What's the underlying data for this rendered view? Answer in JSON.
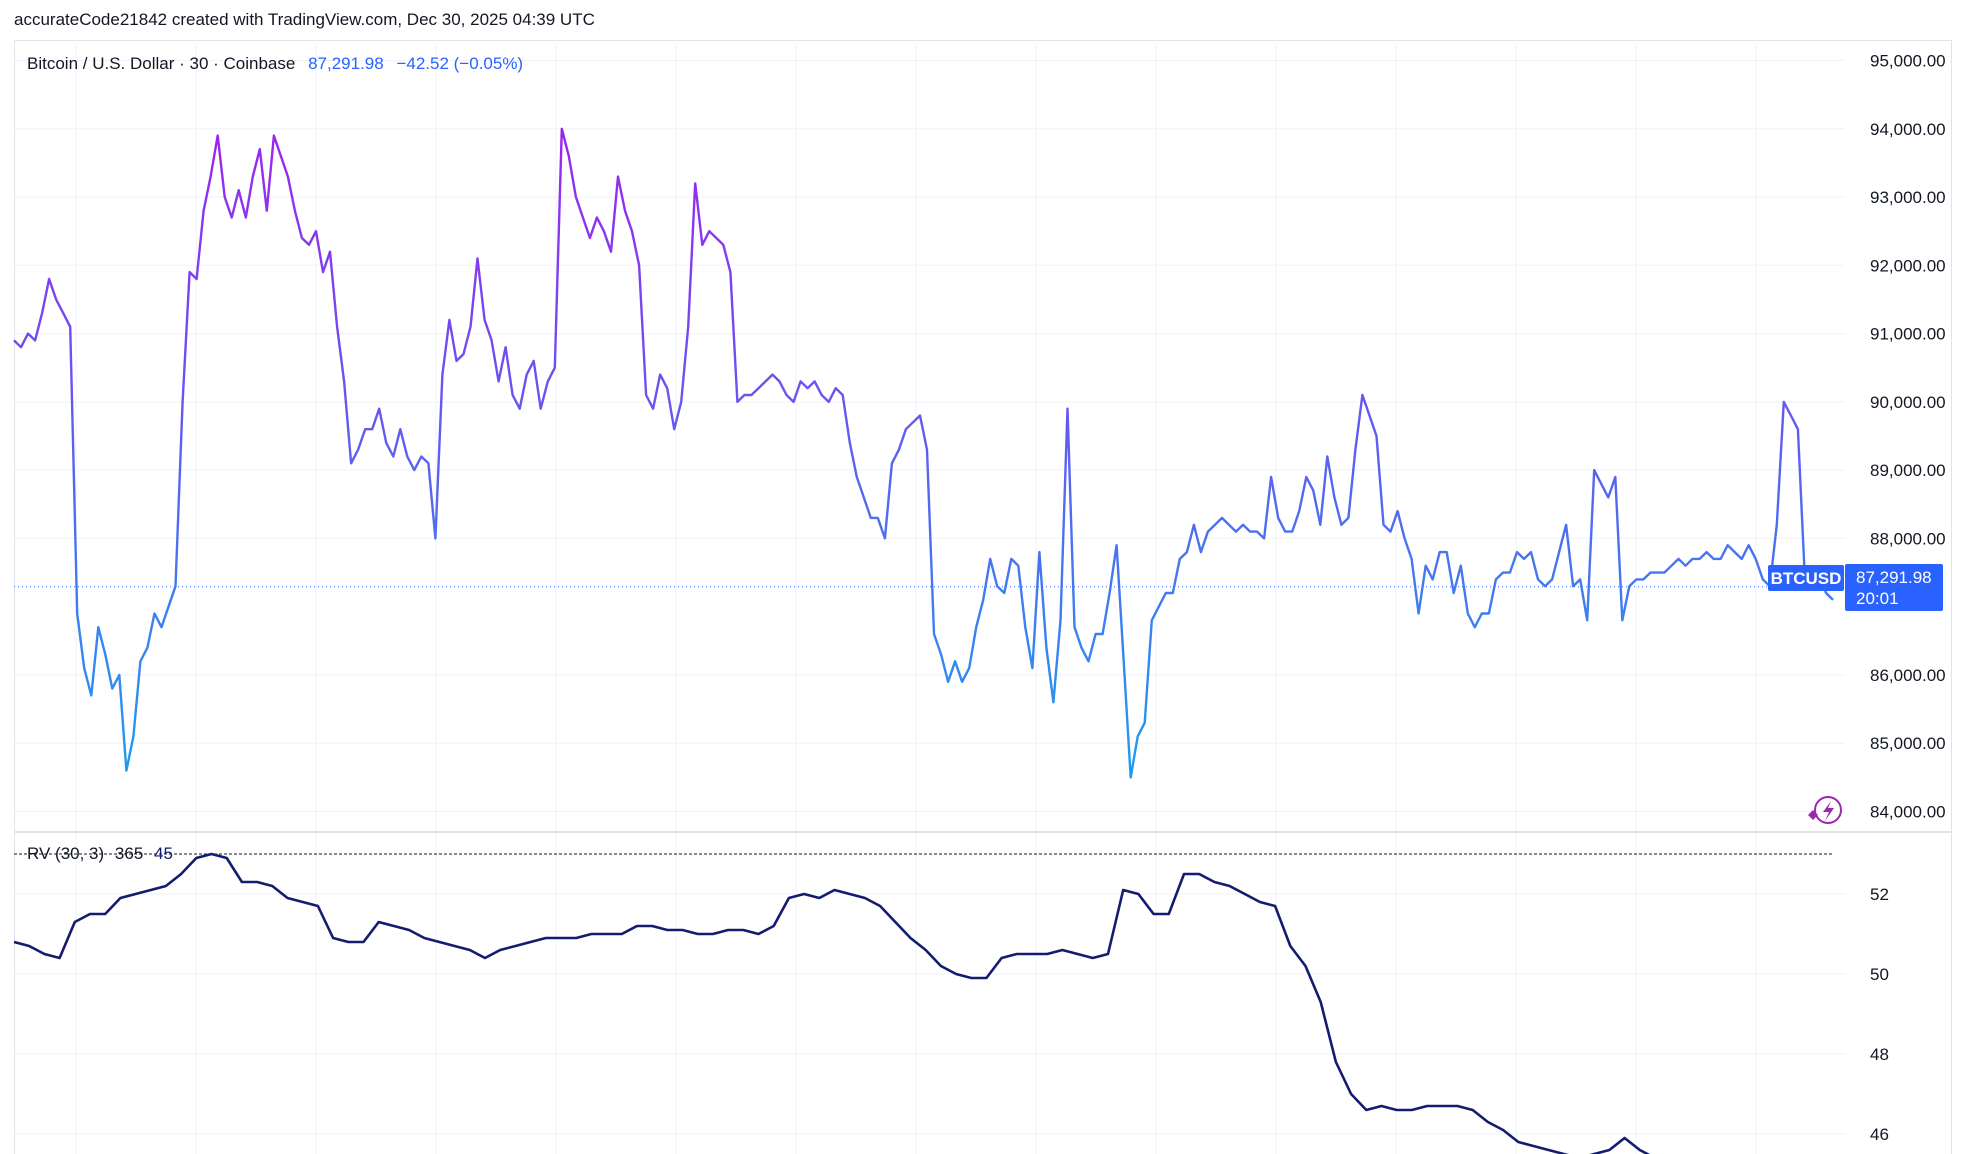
{
  "header": {
    "caption": "accurateCode21842 created with TradingView.com, Dec 30, 2025 04:39 UTC"
  },
  "legend": {
    "symbol": "Bitcoin / U.S. Dollar · 30 · Coinbase",
    "price": "87,291.98",
    "change": "−42.52 (−0.05%)"
  },
  "rv_legend": {
    "name": "RV (30, 3)",
    "period": "365",
    "value": "45"
  },
  "badges": {
    "ticker": "BTCUSD",
    "last_price": "87,291.98",
    "countdown": "20:01"
  },
  "colors": {
    "line_top": "#a020f0",
    "line_bottom": "#1e9bf0",
    "rv_line": "#131c6e",
    "badge": "#2962ff",
    "grid": "#f0f3fa"
  },
  "chart_data": [
    {
      "type": "line",
      "title": "Bitcoin / U.S. Dollar · 30 · Coinbase",
      "ylim": [
        83700,
        95300
      ],
      "yticks": [
        {
          "value": 95000,
          "label": "95,000.00"
        },
        {
          "value": 94000,
          "label": "94,000.00"
        },
        {
          "value": 93000,
          "label": "93,000.00"
        },
        {
          "value": 92000,
          "label": "92,000.00"
        },
        {
          "value": 91000,
          "label": "91,000.00"
        },
        {
          "value": 90000,
          "label": "90,000.00"
        },
        {
          "value": 89000,
          "label": "89,000.00"
        },
        {
          "value": 88000,
          "label": "88,000.00"
        },
        {
          "value": 86000,
          "label": "86,000.00"
        },
        {
          "value": 85000,
          "label": "85,000.00"
        },
        {
          "value": 84000,
          "label": "84,000.00"
        }
      ],
      "last_value": 87291.98,
      "series": [
        {
          "values": [
            90900,
            90800,
            91000,
            90900,
            91300,
            91800,
            91500,
            91300,
            91100,
            86900,
            86100,
            85700,
            86700,
            86300,
            85800,
            86000,
            84600,
            85100,
            86200,
            86400,
            86900,
            86700,
            87000,
            87300,
            90000,
            91900,
            91800,
            92800,
            93300,
            93900,
            93000,
            92700,
            93100,
            92700,
            93300,
            93700,
            92800,
            93900,
            93600,
            93300,
            92800,
            92400,
            92300,
            92500,
            91900,
            92200,
            91100,
            90300,
            89100,
            89300,
            89600,
            89600,
            89900,
            89400,
            89200,
            89600,
            89200,
            89000,
            89200,
            89100,
            88000,
            90400,
            91200,
            90600,
            90700,
            91100,
            92100,
            91200,
            90900,
            90300,
            90800,
            90100,
            89900,
            90400,
            90600,
            89900,
            90300,
            90500,
            94000,
            93600,
            93000,
            92700,
            92400,
            92700,
            92500,
            92200,
            93300,
            92800,
            92500,
            92000,
            90100,
            89900,
            90400,
            90200,
            89600,
            90000,
            91100,
            93200,
            92300,
            92500,
            92400,
            92300,
            91900,
            90000,
            90100,
            90100,
            90200,
            90300,
            90400,
            90300,
            90100,
            90000,
            90300,
            90200,
            90300,
            90100,
            90000,
            90200,
            90100,
            89400,
            88900,
            88600,
            88300,
            88300,
            88000,
            89100,
            89300,
            89600,
            89700,
            89800,
            89300,
            86600,
            86300,
            85900,
            86200,
            85900,
            86100,
            86700,
            87100,
            87700,
            87300,
            87200,
            87700,
            87600,
            86700,
            86100,
            87800,
            86400,
            85600,
            86800,
            89900,
            86700,
            86400,
            86200,
            86600,
            86600,
            87200,
            87900,
            86200,
            84500,
            85100,
            85300,
            86800,
            87000,
            87200,
            87200,
            87700,
            87800,
            88200,
            87800,
            88100,
            88200,
            88300,
            88200,
            88100,
            88200,
            88100,
            88100,
            88000,
            88900,
            88300,
            88100,
            88100,
            88400,
            88900,
            88700,
            88200,
            89200,
            88600,
            88200,
            88300,
            89300,
            90100,
            89800,
            89500,
            88200,
            88100,
            88400,
            88000,
            87700,
            86900,
            87600,
            87400,
            87800,
            87800,
            87200,
            87600,
            86900,
            86700,
            86900,
            86900,
            87400,
            87500,
            87500,
            87800,
            87700,
            87800,
            87400,
            87300,
            87400,
            87800,
            88200,
            87300,
            87400,
            86800,
            89000,
            88800,
            88600,
            88900,
            86800,
            87300,
            87400,
            87400,
            87500,
            87500,
            87500,
            87600,
            87700,
            87600,
            87700,
            87700,
            87800,
            87700,
            87700,
            87900,
            87800,
            87700,
            87900,
            87700,
            87400,
            87300,
            88200,
            90000,
            89800,
            89600,
            87400,
            87400,
            87500,
            87200,
            87100
          ]
        }
      ]
    },
    {
      "type": "line",
      "title": "RV (30, 3)",
      "ylim": [
        45.5,
        53.5
      ],
      "yticks": [
        {
          "value": 52,
          "label": "52"
        },
        {
          "value": 50,
          "label": "50"
        },
        {
          "value": 48,
          "label": "48"
        },
        {
          "value": 46,
          "label": "46"
        }
      ],
      "series": [
        {
          "values": [
            50.8,
            50.7,
            50.5,
            50.4,
            51.3,
            51.5,
            51.5,
            51.9,
            52.0,
            52.1,
            52.2,
            52.5,
            52.9,
            53.0,
            52.9,
            52.3,
            52.3,
            52.2,
            51.9,
            51.8,
            51.7,
            50.9,
            50.8,
            50.8,
            51.3,
            51.2,
            51.1,
            50.9,
            50.8,
            50.7,
            50.6,
            50.4,
            50.6,
            50.7,
            50.8,
            50.9,
            50.9,
            50.9,
            51.0,
            51.0,
            51.0,
            51.2,
            51.2,
            51.1,
            51.1,
            51.0,
            51.0,
            51.1,
            51.1,
            51.0,
            51.2,
            51.9,
            52.0,
            51.9,
            52.1,
            52.0,
            51.9,
            51.7,
            51.3,
            50.9,
            50.6,
            50.2,
            50.0,
            49.9,
            49.9,
            50.4,
            50.5,
            50.5,
            50.5,
            50.6,
            50.5,
            50.4,
            50.5,
            52.1,
            52.0,
            51.5,
            51.5,
            52.5,
            52.5,
            52.3,
            52.2,
            52.0,
            51.8,
            51.7,
            50.7,
            50.2,
            49.3,
            47.8,
            47.0,
            46.6,
            46.7,
            46.6,
            46.6,
            46.7,
            46.7,
            46.7,
            46.6,
            46.3,
            46.1,
            45.8,
            45.7,
            45.6,
            45.5,
            45.4,
            45.5,
            45.6,
            45.9,
            45.6,
            45.4
          ]
        }
      ]
    }
  ]
}
